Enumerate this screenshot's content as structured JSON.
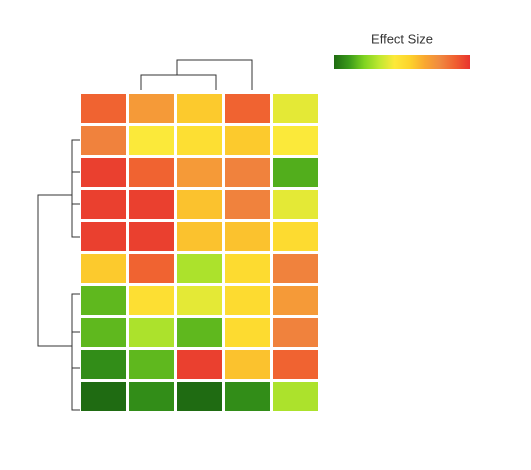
{
  "chart_data": {
    "type": "heatmap",
    "colorbar_title": "Effect Size",
    "zlim": [
      0,
      1
    ],
    "colormap": [
      "#1f6b12",
      "#3a9a1a",
      "#7fd321",
      "#bfe830",
      "#fde93a",
      "#fdd42c",
      "#f9a830",
      "#f08a40",
      "#f06030",
      "#e8342e"
    ],
    "values": [
      [
        0.88,
        0.72,
        0.58,
        0.88,
        0.4
      ],
      [
        0.8,
        0.44,
        0.5,
        0.58,
        0.44
      ],
      [
        0.97,
        0.88,
        0.72,
        0.8,
        0.15
      ],
      [
        0.97,
        0.97,
        0.6,
        0.8,
        0.4
      ],
      [
        0.97,
        0.97,
        0.6,
        0.6,
        0.52
      ],
      [
        0.58,
        0.88,
        0.3,
        0.52,
        0.8
      ],
      [
        0.17,
        0.5,
        0.4,
        0.52,
        0.72
      ],
      [
        0.17,
        0.3,
        0.17,
        0.52,
        0.8
      ],
      [
        0.08,
        0.17,
        0.97,
        0.6,
        0.88
      ],
      [
        0.0,
        0.08,
        0.0,
        0.08,
        0.3
      ]
    ]
  }
}
